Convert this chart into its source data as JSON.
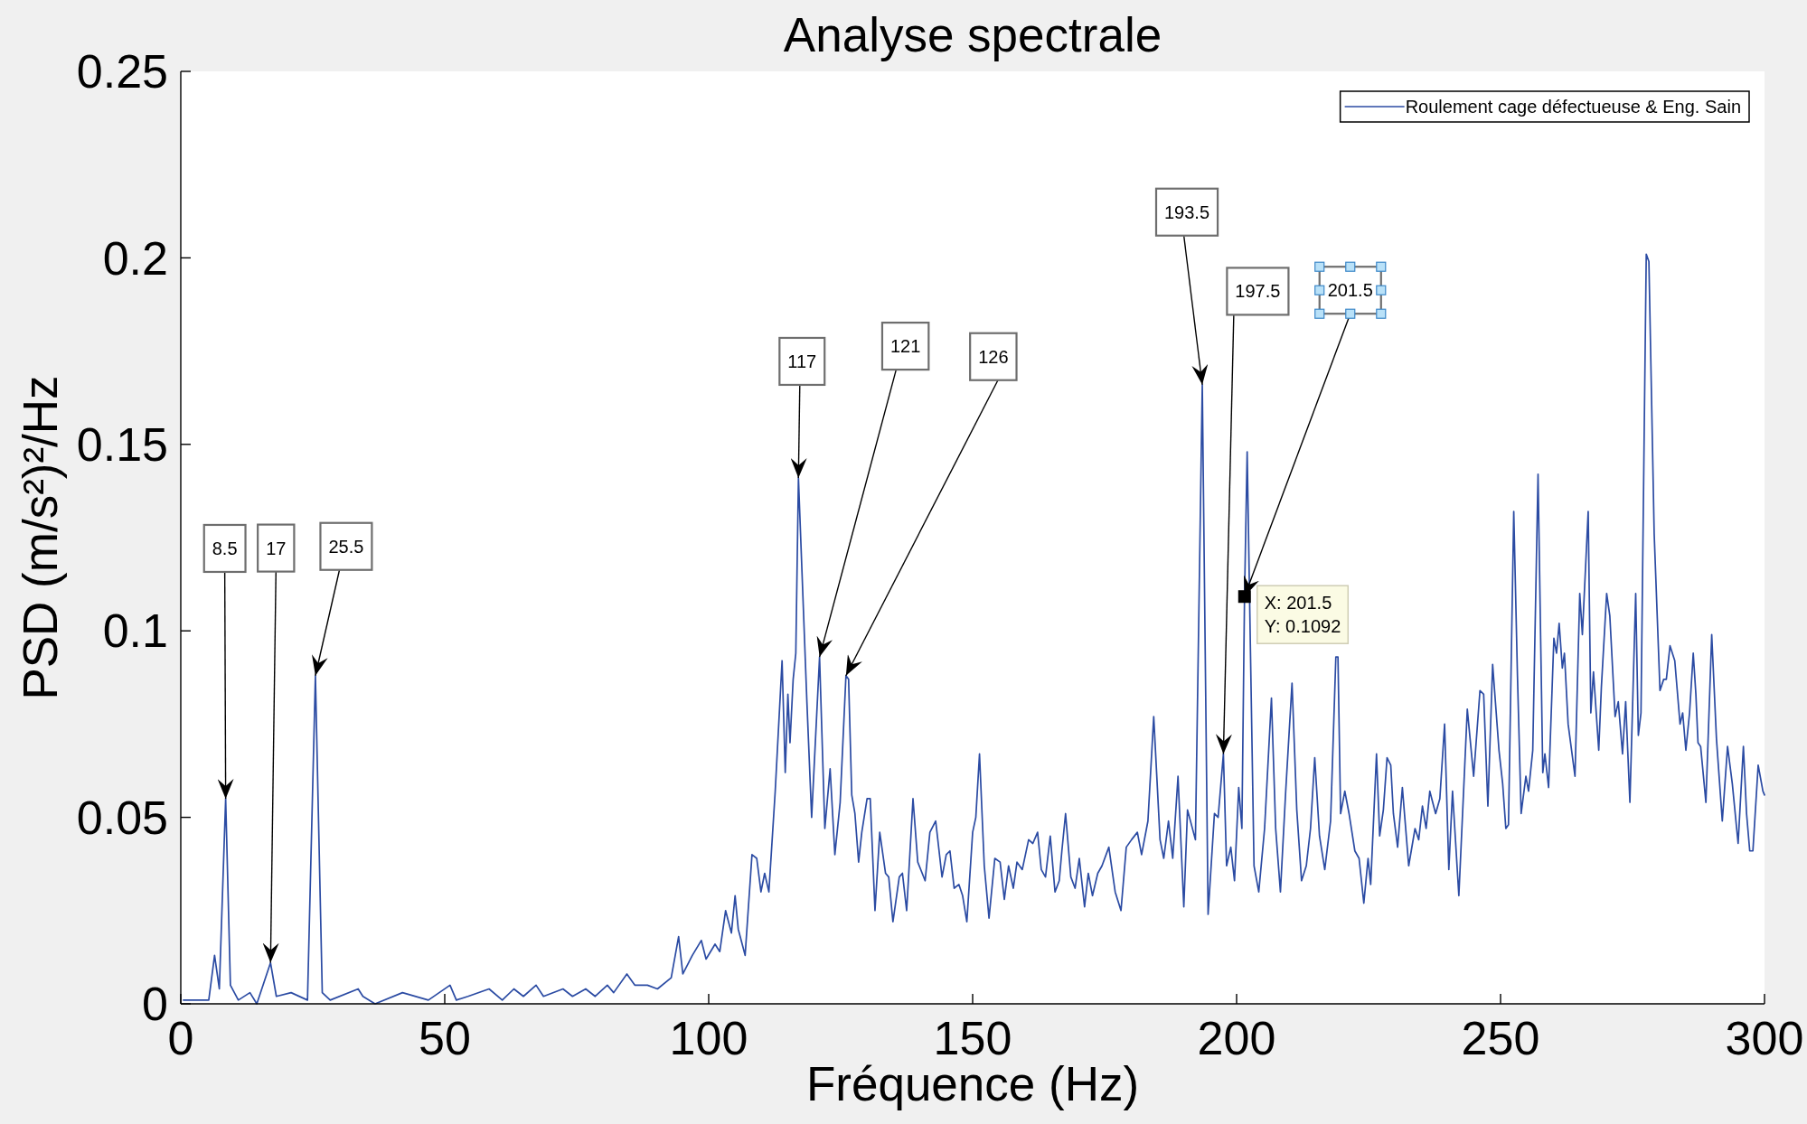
{
  "chart_data": {
    "type": "line",
    "title": "Analyse spectrale",
    "xlabel": "Fréquence (Hz)",
    "ylabel": "PSD (m/s²)²/Hz",
    "xlim": [
      0,
      300
    ],
    "xticks": [
      0,
      50,
      100,
      150,
      200,
      250,
      300
    ],
    "ylim": [
      0,
      0.25
    ],
    "yticks": [
      0,
      0.05,
      0.1,
      0.15,
      0.2,
      0.25
    ],
    "legend": "top right",
    "series": [
      {
        "name": "Roulement cage défectueuse & Eng. Sain",
        "color": "#2b4ba3",
        "x": [
          0.5,
          5.3,
          6.4,
          7.3,
          8.5,
          9.4,
          10.9,
          13.1,
          14.4,
          17,
          18.1,
          20.9,
          24,
          25.5,
          26.8,
          28.3,
          33.6,
          34.5,
          36.8,
          42,
          46.9,
          51,
          52.2,
          54.4,
          58.4,
          60.9,
          63.1,
          64.9,
          67.3,
          68.7,
          72.4,
          74.2,
          76.7,
          78.5,
          80.8,
          82,
          84.5,
          86,
          88.4,
          90.3,
          92.9,
          94.3,
          95.1,
          96.9,
          98.6,
          99.5,
          101.2,
          102.1,
          103.2,
          104.3,
          105,
          105.6,
          106.9,
          108.2,
          109.1,
          109.9,
          110.6,
          111.4,
          112.6,
          113.9,
          114.5,
          115,
          115.4,
          116,
          116.5,
          117,
          118.6,
          119.5,
          121,
          122,
          123,
          123.9,
          124.9,
          126,
          126.5,
          127.1,
          127.7,
          128.4,
          129,
          130,
          130.6,
          131.5,
          132.4,
          133.5,
          134.1,
          134.9,
          136.1,
          136.7,
          137.5,
          138.7,
          139.6,
          141,
          141.9,
          143,
          144.2,
          145,
          145.7,
          146.5,
          147.4,
          148.1,
          148.9,
          150,
          150.6,
          151.3,
          152.2,
          153.1,
          154.2,
          155.2,
          156,
          156.8,
          157.7,
          158.4,
          159.4,
          160.6,
          161.4,
          162.3,
          163,
          163.8,
          164.7,
          165.6,
          166.4,
          166.9,
          167.6,
          168.6,
          169.4,
          170.2,
          171.2,
          171.9,
          172.7,
          173.7,
          174.5,
          175.8,
          177,
          178.1,
          179.1,
          180.1,
          181.2,
          182,
          183.2,
          184.3,
          185.5,
          186.2,
          187.1,
          187.9,
          188.9,
          190,
          190.7,
          192.2,
          193.5,
          194.6,
          195.8,
          196.5,
          197.5,
          198.1,
          198.9,
          199.6,
          200.4,
          201,
          201.5,
          202,
          203.3,
          204.2,
          205.3,
          206.6,
          207.4,
          208.3,
          209.3,
          210.5,
          211.4,
          212.3,
          213.2,
          214,
          214.8,
          215.7,
          216.7,
          217.8,
          218.8,
          219.2,
          219.7,
          220.5,
          221.3,
          222.4,
          223.2,
          224.1,
          224.9,
          225.4,
          226.5,
          227.1,
          227.8,
          228.5,
          229.2,
          229.7,
          230.5,
          231.4,
          232.6,
          233.8,
          234.5,
          235.2,
          235.9,
          236.6,
          237.7,
          238.5,
          239.4,
          240.2,
          240.9,
          242.1,
          243.7,
          244.9,
          246.1,
          246.8,
          247.6,
          248.5,
          249.7,
          250.4,
          251,
          251.5,
          252.5,
          253.2,
          253.9,
          254.8,
          255.3,
          256.1,
          257.1,
          258,
          258.4,
          259.1,
          260.1,
          260.6,
          261.1,
          261.7,
          262.1,
          262.8,
          264.1,
          265,
          265.5,
          266.6,
          267.1,
          267.6,
          268.6,
          269.1,
          270.1,
          270.7,
          271.7,
          272.3,
          273.1,
          273.7,
          274.5,
          275.6,
          276.1,
          276.6,
          277.6,
          278.1,
          279.1,
          280.2,
          280.9,
          281.4,
          282.1,
          283,
          284,
          284.5,
          285.1,
          285.8,
          286.5,
          287,
          287.4,
          287.9,
          288.9,
          290,
          290.9,
          292,
          293,
          293.9,
          295,
          296,
          296.6,
          297.2,
          297.8,
          298.8,
          299.7,
          300
        ],
        "values": [
          0.001,
          0.001,
          0.013,
          0.004,
          0.055,
          0.005,
          0.001,
          0.003,
          0,
          0.011,
          0.002,
          0.003,
          0.001,
          0.088,
          0.003,
          0.001,
          0.004,
          0.002,
          0,
          0.003,
          0.001,
          0.005,
          0.001,
          0.002,
          0.004,
          0.001,
          0.004,
          0.002,
          0.005,
          0.002,
          0.004,
          0.002,
          0.004,
          0.002,
          0.005,
          0.003,
          0.008,
          0.005,
          0.005,
          0.004,
          0.007,
          0.018,
          0.008,
          0.013,
          0.017,
          0.012,
          0.016,
          0.014,
          0.025,
          0.019,
          0.029,
          0.02,
          0.013,
          0.04,
          0.039,
          0.03,
          0.035,
          0.03,
          0.057,
          0.092,
          0.062,
          0.083,
          0.07,
          0.087,
          0.094,
          0.141,
          0.081,
          0.05,
          0.093,
          0.047,
          0.063,
          0.04,
          0.054,
          0.088,
          0.087,
          0.056,
          0.051,
          0.038,
          0.046,
          0.055,
          0.055,
          0.025,
          0.046,
          0.035,
          0.034,
          0.022,
          0.034,
          0.035,
          0.025,
          0.055,
          0.038,
          0.033,
          0.046,
          0.049,
          0.034,
          0.04,
          0.041,
          0.031,
          0.032,
          0.029,
          0.022,
          0.046,
          0.05,
          0.067,
          0.037,
          0.023,
          0.039,
          0.038,
          0.028,
          0.037,
          0.031,
          0.038,
          0.036,
          0.044,
          0.043,
          0.046,
          0.036,
          0.034,
          0.045,
          0.03,
          0.033,
          0.041,
          0.051,
          0.034,
          0.031,
          0.039,
          0.026,
          0.035,
          0.029,
          0.035,
          0.037,
          0.042,
          0.03,
          0.025,
          0.042,
          0.044,
          0.046,
          0.04,
          0.049,
          0.077,
          0.044,
          0.039,
          0.049,
          0.039,
          0.061,
          0.026,
          0.052,
          0.044,
          0.166,
          0.024,
          0.051,
          0.05,
          0.067,
          0.037,
          0.042,
          0.033,
          0.058,
          0.047,
          0.1092,
          0.148,
          0.037,
          0.03,
          0.047,
          0.082,
          0.047,
          0.03,
          0.057,
          0.086,
          0.052,
          0.033,
          0.037,
          0.047,
          0.066,
          0.045,
          0.036,
          0.049,
          0.093,
          0.093,
          0.051,
          0.057,
          0.051,
          0.041,
          0.039,
          0.027,
          0.039,
          0.032,
          0.067,
          0.045,
          0.052,
          0.066,
          0.064,
          0.051,
          0.042,
          0.058,
          0.037,
          0.047,
          0.044,
          0.053,
          0.047,
          0.057,
          0.051,
          0.055,
          0.075,
          0.036,
          0.057,
          0.029,
          0.079,
          0.061,
          0.084,
          0.083,
          0.053,
          0.091,
          0.068,
          0.059,
          0.047,
          0.048,
          0.132,
          0.088,
          0.051,
          0.061,
          0.057,
          0.068,
          0.142,
          0.062,
          0.067,
          0.058,
          0.098,
          0.094,
          0.102,
          0.09,
          0.094,
          0.075,
          0.061,
          0.11,
          0.099,
          0.132,
          0.078,
          0.089,
          0.068,
          0.085,
          0.11,
          0.104,
          0.077,
          0.081,
          0.067,
          0.081,
          0.054,
          0.11,
          0.072,
          0.078,
          0.201,
          0.199,
          0.126,
          0.084,
          0.087,
          0.087,
          0.096,
          0.092,
          0.075,
          0.078,
          0.068,
          0.078,
          0.094,
          0.083,
          0.07,
          0.069,
          0.054,
          0.099,
          0.071,
          0.049,
          0.069,
          0.059,
          0.043,
          0.069,
          0.051,
          0.041,
          0.041,
          0.064,
          0.057,
          0.056
        ]
      }
    ],
    "annotations": [
      {
        "text": "8.5",
        "x": 8.5,
        "y": 0.055
      },
      {
        "text": "17",
        "x": 17,
        "y": 0.011
      },
      {
        "text": "25.5",
        "x": 25.5,
        "y": 0.088
      },
      {
        "text": "117",
        "x": 117,
        "y": 0.141
      },
      {
        "text": "121",
        "x": 121,
        "y": 0.093
      },
      {
        "text": "126",
        "x": 126,
        "y": 0.088
      },
      {
        "text": "193.5",
        "x": 193.5,
        "y": 0.166
      },
      {
        "text": "197.5",
        "x": 197.5,
        "y": 0.067
      },
      {
        "text": "201.5",
        "x": 201.5,
        "y": 0.1092
      },
      {
        "text": "X: 201.5\nY: 0.1092",
        "x": 201.5,
        "y": 0.1092
      }
    ]
  }
}
